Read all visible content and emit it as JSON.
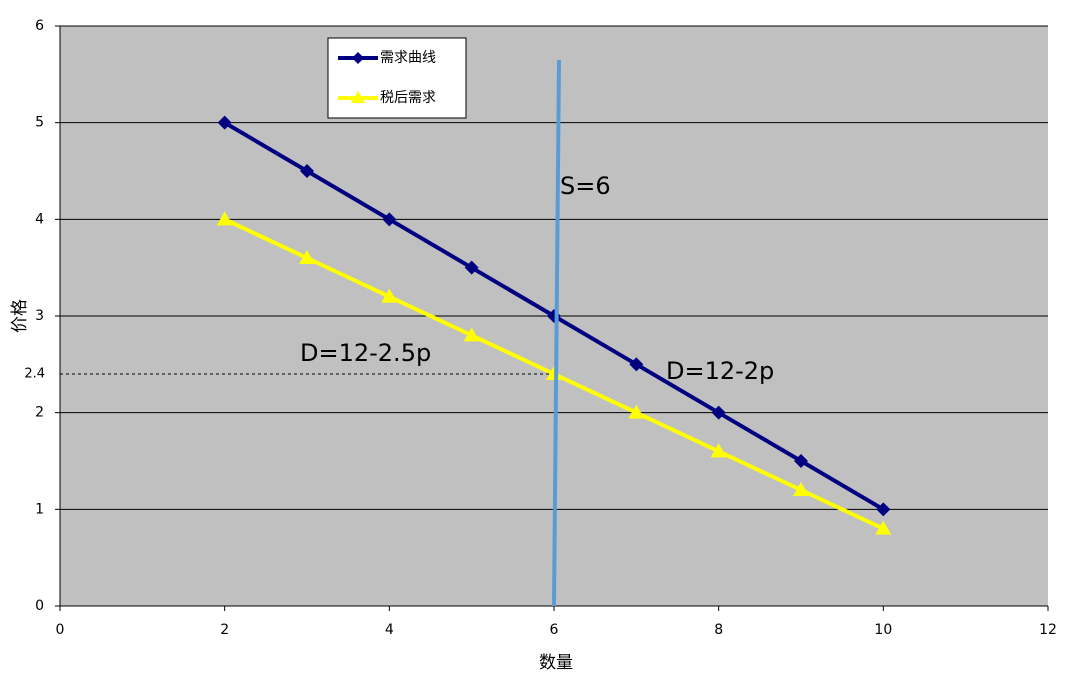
{
  "chart_data": {
    "type": "line",
    "x": [
      2,
      3,
      4,
      5,
      6,
      7,
      8,
      9,
      10
    ],
    "series": [
      {
        "name": "需求曲线",
        "color": "#000080",
        "marker": "diamond",
        "values": [
          5,
          4.5,
          4,
          3.5,
          3,
          2.5,
          2,
          1.5,
          1
        ]
      },
      {
        "name": "税后需求",
        "color": "#ffff00",
        "marker": "triangle",
        "values": [
          4,
          3.6,
          3.2,
          2.8,
          2.4,
          2.0,
          1.6,
          1.2,
          0.8
        ]
      }
    ],
    "xlim": [
      0,
      12
    ],
    "xticks": [
      0,
      2,
      4,
      6,
      8,
      10,
      12
    ],
    "ylim": [
      0,
      6
    ],
    "yticks": [
      0,
      1,
      2,
      3,
      4,
      5,
      6
    ],
    "grid": true,
    "legend": "top-left",
    "x_label": "数量",
    "y_label": "价格",
    "supply_line": {
      "x": 6,
      "label": "S=6",
      "color": "#5b9bd5"
    },
    "reference_line": {
      "y": 2.4,
      "x": 6
    },
    "annotations": [
      "D=12-2.5p",
      "D=12-2p"
    ]
  }
}
